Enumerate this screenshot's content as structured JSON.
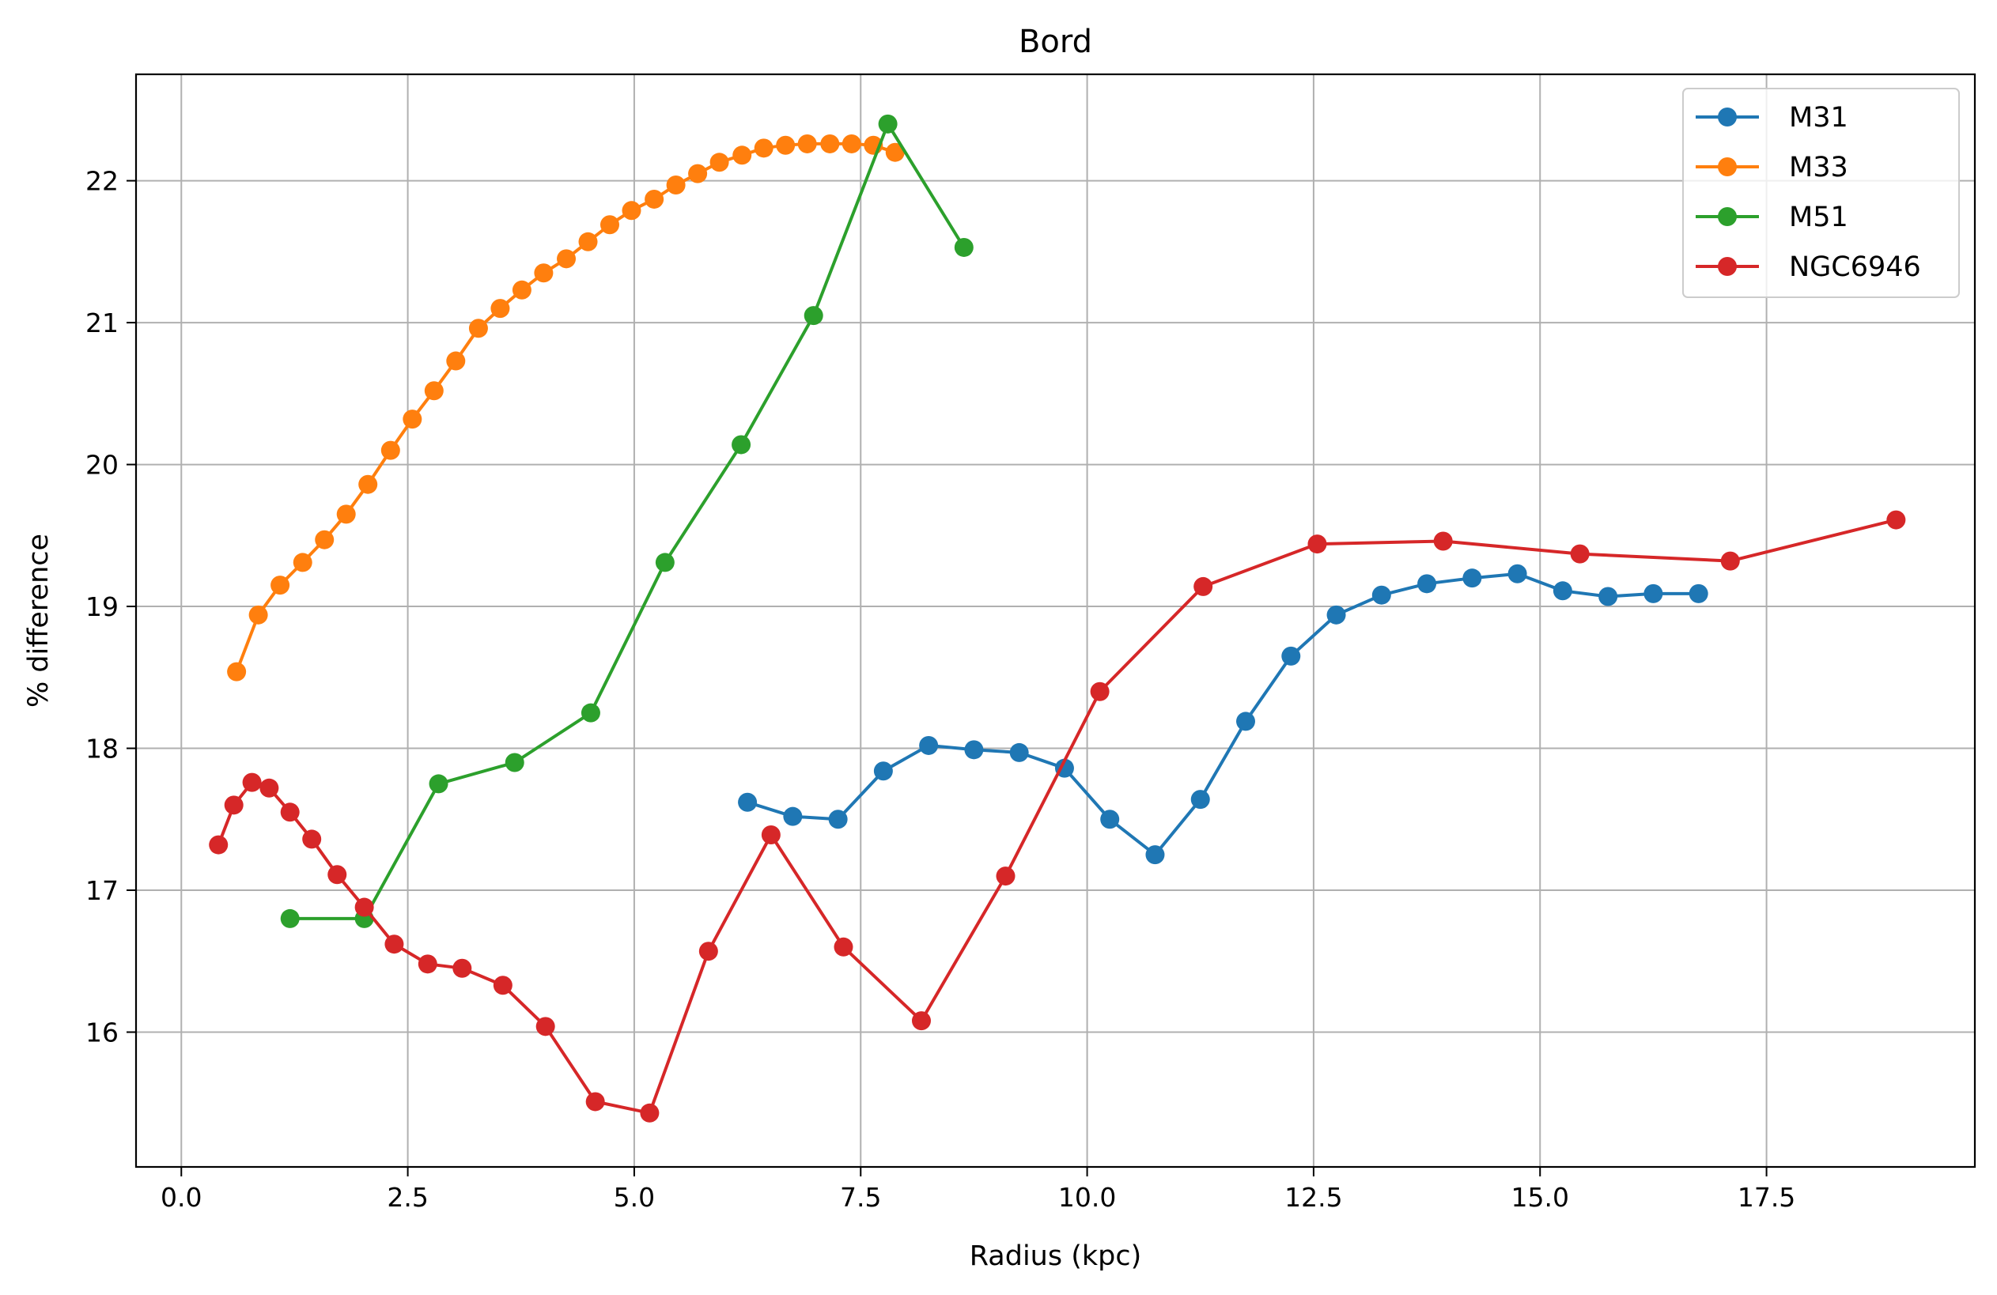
{
  "chart_data": {
    "type": "line",
    "title": "Bord",
    "xlabel": "Radius (kpc)",
    "ylabel": "% difference",
    "xlim": [
      -0.5,
      19.8
    ],
    "ylim": [
      15.05,
      22.75
    ],
    "xticks": [
      0.0,
      2.5,
      5.0,
      7.5,
      10.0,
      12.5,
      15.0,
      17.5
    ],
    "xtick_labels": [
      "0.0",
      "2.5",
      "5.0",
      "7.5",
      "10.0",
      "12.5",
      "15.0",
      "17.5"
    ],
    "yticks": [
      16,
      17,
      18,
      19,
      20,
      21,
      22
    ],
    "ytick_labels": [
      "16",
      "17",
      "18",
      "19",
      "20",
      "21",
      "22"
    ],
    "grid": true,
    "legend_position": "top-right",
    "series": [
      {
        "name": "M31",
        "color": "#1f77b4",
        "marker": "circle",
        "x": [
          6.25,
          6.75,
          7.25,
          7.75,
          8.25,
          8.75,
          9.25,
          9.75,
          10.25,
          10.75,
          11.25,
          11.75,
          12.25,
          12.75,
          13.25,
          13.75,
          14.25,
          14.75,
          15.25,
          15.75,
          16.25,
          16.75
        ],
        "y": [
          17.62,
          17.52,
          17.5,
          17.84,
          18.02,
          17.99,
          17.97,
          17.86,
          17.5,
          17.25,
          17.64,
          18.19,
          18.65,
          18.94,
          19.08,
          19.16,
          19.2,
          19.23,
          19.11,
          19.07,
          19.09,
          19.09
        ]
      },
      {
        "name": "M33",
        "color": "#ff7f0e",
        "marker": "circle",
        "x": [
          0.61,
          0.85,
          1.09,
          1.34,
          1.58,
          1.82,
          2.06,
          2.31,
          2.55,
          2.79,
          3.03,
          3.28,
          3.52,
          3.76,
          4.0,
          4.25,
          4.49,
          4.73,
          4.97,
          5.22,
          5.46,
          5.7,
          5.94,
          6.19,
          6.43,
          6.67,
          6.91,
          7.16,
          7.4,
          7.64,
          7.88
        ],
        "y": [
          18.54,
          18.94,
          19.15,
          19.31,
          19.47,
          19.65,
          19.86,
          20.1,
          20.32,
          20.52,
          20.73,
          20.96,
          21.1,
          21.23,
          21.35,
          21.45,
          21.57,
          21.69,
          21.79,
          21.87,
          21.97,
          22.05,
          22.13,
          22.18,
          22.23,
          22.25,
          22.26,
          22.26,
          22.26,
          22.25,
          22.2
        ]
      },
      {
        "name": "M51",
        "color": "#2ca02c",
        "marker": "circle",
        "x": [
          1.2,
          2.02,
          2.84,
          3.68,
          4.52,
          5.34,
          6.18,
          6.98,
          7.8,
          8.64
        ],
        "y": [
          16.8,
          16.8,
          17.75,
          17.9,
          18.25,
          19.31,
          20.14,
          21.05,
          22.4,
          21.53
        ]
      },
      {
        "name": "NGC6946",
        "color": "#d62728",
        "marker": "circle",
        "x": [
          0.41,
          0.58,
          0.78,
          0.97,
          1.2,
          1.44,
          1.72,
          2.02,
          2.35,
          2.72,
          3.1,
          3.55,
          4.02,
          4.57,
          5.17,
          5.82,
          6.51,
          7.31,
          8.17,
          9.1,
          10.14,
          11.28,
          12.54,
          13.93,
          15.44,
          17.1,
          18.93
        ],
        "y": [
          17.32,
          17.6,
          17.76,
          17.72,
          17.55,
          17.36,
          17.11,
          16.88,
          16.62,
          16.48,
          16.45,
          16.33,
          16.04,
          15.51,
          15.43,
          16.57,
          17.39,
          16.6,
          16.08,
          17.1,
          18.4,
          19.14,
          19.44,
          19.46,
          19.37,
          19.32,
          19.61
        ]
      }
    ]
  }
}
